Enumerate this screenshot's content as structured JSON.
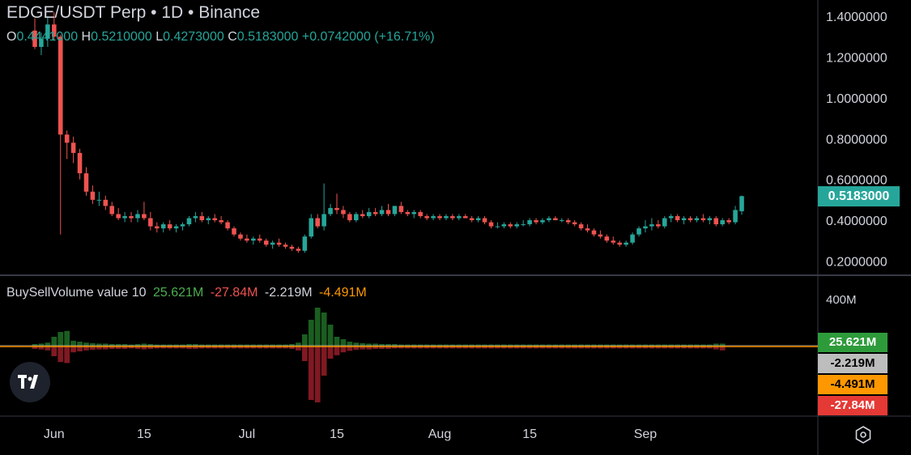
{
  "header": {
    "title": "EDGE/USDT Perp • 1D • Binance",
    "ohlc_prefix": "O",
    "open": "0.4441000",
    "high_label": "H",
    "high": "0.5210000",
    "low_label": "L",
    "low": "0.4273000",
    "close_label": "C",
    "close": "0.5183000",
    "change": "+0.0742000 (+16.71%)"
  },
  "price_axis": {
    "ticks": [
      "1.4000000",
      "1.2000000",
      "1.0000000",
      "0.8000000",
      "0.6000000",
      "0.4000000",
      "0.2000000"
    ],
    "last_price": "0.5183000"
  },
  "indicator": {
    "name": "BuySellVolume value 10",
    "v1": "25.621M",
    "v2": "-27.84M",
    "v3": "-2.219M",
    "v4": "-4.491M",
    "axis_label": "400M",
    "tags": [
      "25.621M",
      "-2.219M",
      "-4.491M",
      "-27.84M"
    ]
  },
  "time_axis": {
    "labels": [
      "Jun",
      "15",
      "Jul",
      "15",
      "Aug",
      "15",
      "Sep"
    ]
  },
  "colors": {
    "up": "#26a69a",
    "down": "#ef5350",
    "buy": "#1b5e20",
    "sell": "#801922",
    "grid": "#363a45",
    "tag_green": "#2e9b3b",
    "tag_gray": "#bdbdbd",
    "tag_orange": "#ff9800",
    "tag_red": "#e53935"
  },
  "icons": {
    "logo": "tradingview-logo-icon",
    "settings": "settings-hexagon-icon"
  },
  "chart_data": {
    "type": "candlestick",
    "title": "EDGE/USDT Perp • 1D • Binance",
    "ylim": [
      0.13,
      1.48
    ],
    "x_labels": [
      "Jun",
      "15",
      "Jul",
      "15",
      "Aug",
      "15",
      "Sep"
    ],
    "candles": [
      [
        1.33,
        1.39,
        1.24,
        1.25
      ],
      [
        1.25,
        1.32,
        1.21,
        1.29
      ],
      [
        1.29,
        1.4,
        1.25,
        1.36
      ],
      [
        1.36,
        1.42,
        1.28,
        1.3
      ],
      [
        1.3,
        1.31,
        0.33,
        0.82
      ],
      [
        0.82,
        0.84,
        0.7,
        0.78
      ],
      [
        0.78,
        0.81,
        0.68,
        0.73
      ],
      [
        0.73,
        0.75,
        0.6,
        0.63
      ],
      [
        0.63,
        0.66,
        0.52,
        0.54
      ],
      [
        0.54,
        0.57,
        0.48,
        0.5
      ],
      [
        0.5,
        0.54,
        0.47,
        0.5
      ],
      [
        0.5,
        0.52,
        0.45,
        0.47
      ],
      [
        0.47,
        0.49,
        0.42,
        0.43
      ],
      [
        0.43,
        0.46,
        0.4,
        0.41
      ],
      [
        0.41,
        0.44,
        0.39,
        0.42
      ],
      [
        0.42,
        0.44,
        0.39,
        0.41
      ],
      [
        0.41,
        0.45,
        0.39,
        0.43
      ],
      [
        0.43,
        0.49,
        0.4,
        0.41
      ],
      [
        0.41,
        0.44,
        0.35,
        0.37
      ],
      [
        0.37,
        0.39,
        0.34,
        0.36
      ],
      [
        0.36,
        0.39,
        0.34,
        0.38
      ],
      [
        0.38,
        0.4,
        0.35,
        0.36
      ],
      [
        0.36,
        0.38,
        0.34,
        0.37
      ],
      [
        0.37,
        0.39,
        0.35,
        0.38
      ],
      [
        0.38,
        0.42,
        0.37,
        0.41
      ],
      [
        0.41,
        0.44,
        0.39,
        0.42
      ],
      [
        0.42,
        0.44,
        0.39,
        0.4
      ],
      [
        0.4,
        0.42,
        0.38,
        0.41
      ],
      [
        0.41,
        0.43,
        0.39,
        0.4
      ],
      [
        0.4,
        0.42,
        0.38,
        0.39
      ],
      [
        0.39,
        0.4,
        0.35,
        0.36
      ],
      [
        0.36,
        0.37,
        0.32,
        0.33
      ],
      [
        0.33,
        0.34,
        0.3,
        0.31
      ],
      [
        0.31,
        0.33,
        0.29,
        0.3
      ],
      [
        0.3,
        0.32,
        0.28,
        0.31
      ],
      [
        0.31,
        0.33,
        0.29,
        0.3
      ],
      [
        0.3,
        0.31,
        0.27,
        0.28
      ],
      [
        0.28,
        0.3,
        0.26,
        0.29
      ],
      [
        0.29,
        0.31,
        0.27,
        0.28
      ],
      [
        0.28,
        0.29,
        0.26,
        0.27
      ],
      [
        0.27,
        0.28,
        0.25,
        0.26
      ],
      [
        0.26,
        0.27,
        0.24,
        0.25
      ],
      [
        0.25,
        0.33,
        0.24,
        0.32
      ],
      [
        0.32,
        0.43,
        0.31,
        0.41
      ],
      [
        0.41,
        0.43,
        0.36,
        0.37
      ],
      [
        0.37,
        0.58,
        0.35,
        0.43
      ],
      [
        0.43,
        0.48,
        0.42,
        0.46
      ],
      [
        0.46,
        0.53,
        0.43,
        0.45
      ],
      [
        0.45,
        0.47,
        0.41,
        0.43
      ],
      [
        0.43,
        0.44,
        0.39,
        0.4
      ],
      [
        0.4,
        0.44,
        0.39,
        0.43
      ],
      [
        0.43,
        0.45,
        0.41,
        0.42
      ],
      [
        0.42,
        0.46,
        0.41,
        0.44
      ],
      [
        0.44,
        0.46,
        0.42,
        0.43
      ],
      [
        0.43,
        0.47,
        0.42,
        0.45
      ],
      [
        0.45,
        0.48,
        0.42,
        0.43
      ],
      [
        0.43,
        0.47,
        0.42,
        0.47
      ],
      [
        0.47,
        0.49,
        0.43,
        0.44
      ],
      [
        0.44,
        0.45,
        0.42,
        0.43
      ],
      [
        0.43,
        0.45,
        0.41,
        0.44
      ],
      [
        0.44,
        0.45,
        0.41,
        0.42
      ],
      [
        0.42,
        0.43,
        0.4,
        0.41
      ],
      [
        0.41,
        0.43,
        0.4,
        0.42
      ],
      [
        0.42,
        0.43,
        0.4,
        0.41
      ],
      [
        0.41,
        0.43,
        0.4,
        0.42
      ],
      [
        0.42,
        0.43,
        0.4,
        0.41
      ],
      [
        0.41,
        0.43,
        0.4,
        0.42
      ],
      [
        0.42,
        0.43,
        0.41,
        0.41
      ],
      [
        0.41,
        0.42,
        0.39,
        0.4
      ],
      [
        0.4,
        0.42,
        0.39,
        0.41
      ],
      [
        0.41,
        0.42,
        0.38,
        0.39
      ],
      [
        0.39,
        0.4,
        0.36,
        0.37
      ],
      [
        0.37,
        0.39,
        0.36,
        0.37
      ],
      [
        0.37,
        0.39,
        0.36,
        0.38
      ],
      [
        0.38,
        0.39,
        0.36,
        0.37
      ],
      [
        0.37,
        0.39,
        0.36,
        0.38
      ],
      [
        0.38,
        0.4,
        0.37,
        0.38
      ],
      [
        0.38,
        0.41,
        0.37,
        0.4
      ],
      [
        0.4,
        0.41,
        0.38,
        0.39
      ],
      [
        0.39,
        0.41,
        0.38,
        0.4
      ],
      [
        0.4,
        0.42,
        0.39,
        0.41
      ],
      [
        0.41,
        0.42,
        0.4,
        0.4
      ],
      [
        0.4,
        0.41,
        0.39,
        0.4
      ],
      [
        0.4,
        0.41,
        0.38,
        0.39
      ],
      [
        0.39,
        0.4,
        0.37,
        0.38
      ],
      [
        0.38,
        0.39,
        0.35,
        0.36
      ],
      [
        0.36,
        0.38,
        0.34,
        0.35
      ],
      [
        0.35,
        0.36,
        0.32,
        0.33
      ],
      [
        0.33,
        0.35,
        0.31,
        0.32
      ],
      [
        0.32,
        0.33,
        0.29,
        0.3
      ],
      [
        0.3,
        0.32,
        0.28,
        0.29
      ],
      [
        0.29,
        0.3,
        0.27,
        0.28
      ],
      [
        0.28,
        0.3,
        0.27,
        0.29
      ],
      [
        0.29,
        0.34,
        0.28,
        0.33
      ],
      [
        0.33,
        0.37,
        0.32,
        0.36
      ],
      [
        0.36,
        0.4,
        0.34,
        0.37
      ],
      [
        0.37,
        0.41,
        0.35,
        0.38
      ],
      [
        0.38,
        0.4,
        0.36,
        0.37
      ],
      [
        0.37,
        0.42,
        0.36,
        0.41
      ],
      [
        0.41,
        0.43,
        0.39,
        0.42
      ],
      [
        0.42,
        0.43,
        0.39,
        0.4
      ],
      [
        0.4,
        0.42,
        0.38,
        0.41
      ],
      [
        0.41,
        0.42,
        0.39,
        0.4
      ],
      [
        0.4,
        0.42,
        0.39,
        0.41
      ],
      [
        0.41,
        0.43,
        0.39,
        0.4
      ],
      [
        0.4,
        0.42,
        0.38,
        0.41
      ],
      [
        0.41,
        0.42,
        0.37,
        0.38
      ],
      [
        0.38,
        0.41,
        0.37,
        0.4
      ],
      [
        0.4,
        0.41,
        0.38,
        0.39
      ],
      [
        0.39,
        0.47,
        0.38,
        0.45
      ],
      [
        0.444,
        0.521,
        0.427,
        0.518
      ]
    ],
    "buy_volume": [
      5,
      6,
      8,
      20,
      30,
      32,
      12,
      10,
      8,
      7,
      6,
      6,
      5,
      5,
      5,
      4,
      5,
      6,
      5,
      4,
      4,
      4,
      4,
      4,
      5,
      5,
      4,
      4,
      4,
      4,
      4,
      4,
      4,
      4,
      4,
      4,
      4,
      4,
      4,
      4,
      5,
      8,
      25,
      55,
      80,
      70,
      45,
      20,
      15,
      10,
      8,
      7,
      6,
      6,
      5,
      5,
      5,
      4,
      4,
      4,
      4,
      4,
      4,
      4,
      4,
      4,
      4,
      4,
      4,
      4,
      4,
      4,
      4,
      4,
      4,
      4,
      4,
      4,
      4,
      4,
      4,
      4,
      4,
      4,
      4,
      4,
      4,
      4,
      4,
      4,
      4,
      4,
      4,
      4,
      4,
      4,
      4,
      4,
      4,
      4,
      4,
      4,
      4,
      4,
      4,
      4,
      6,
      6
    ],
    "sell_volume": [
      -5,
      -6,
      -8,
      -20,
      -32,
      -34,
      -12,
      -10,
      -8,
      -7,
      -6,
      -6,
      -5,
      -5,
      -5,
      -4,
      -5,
      -6,
      -5,
      -4,
      -4,
      -4,
      -4,
      -4,
      -5,
      -5,
      -4,
      -4,
      -4,
      -4,
      -4,
      -4,
      -4,
      -4,
      -4,
      -4,
      -4,
      -4,
      -4,
      -4,
      -5,
      -8,
      -30,
      -110,
      -115,
      -60,
      -25,
      -18,
      -12,
      -9,
      -7,
      -6,
      -6,
      -5,
      -5,
      -5,
      -4,
      -4,
      -4,
      -4,
      -4,
      -4,
      -4,
      -4,
      -4,
      -4,
      -4,
      -4,
      -4,
      -4,
      -4,
      -4,
      -4,
      -4,
      -4,
      -4,
      -4,
      -4,
      -4,
      -4,
      -4,
      -4,
      -4,
      -4,
      -4,
      -4,
      -4,
      -4,
      -4,
      -4,
      -4,
      -4,
      -4,
      -4,
      -4,
      -4,
      -4,
      -4,
      -4,
      -4,
      -4,
      -4,
      -4,
      -4,
      -4,
      -4,
      -6,
      -8
    ]
  }
}
